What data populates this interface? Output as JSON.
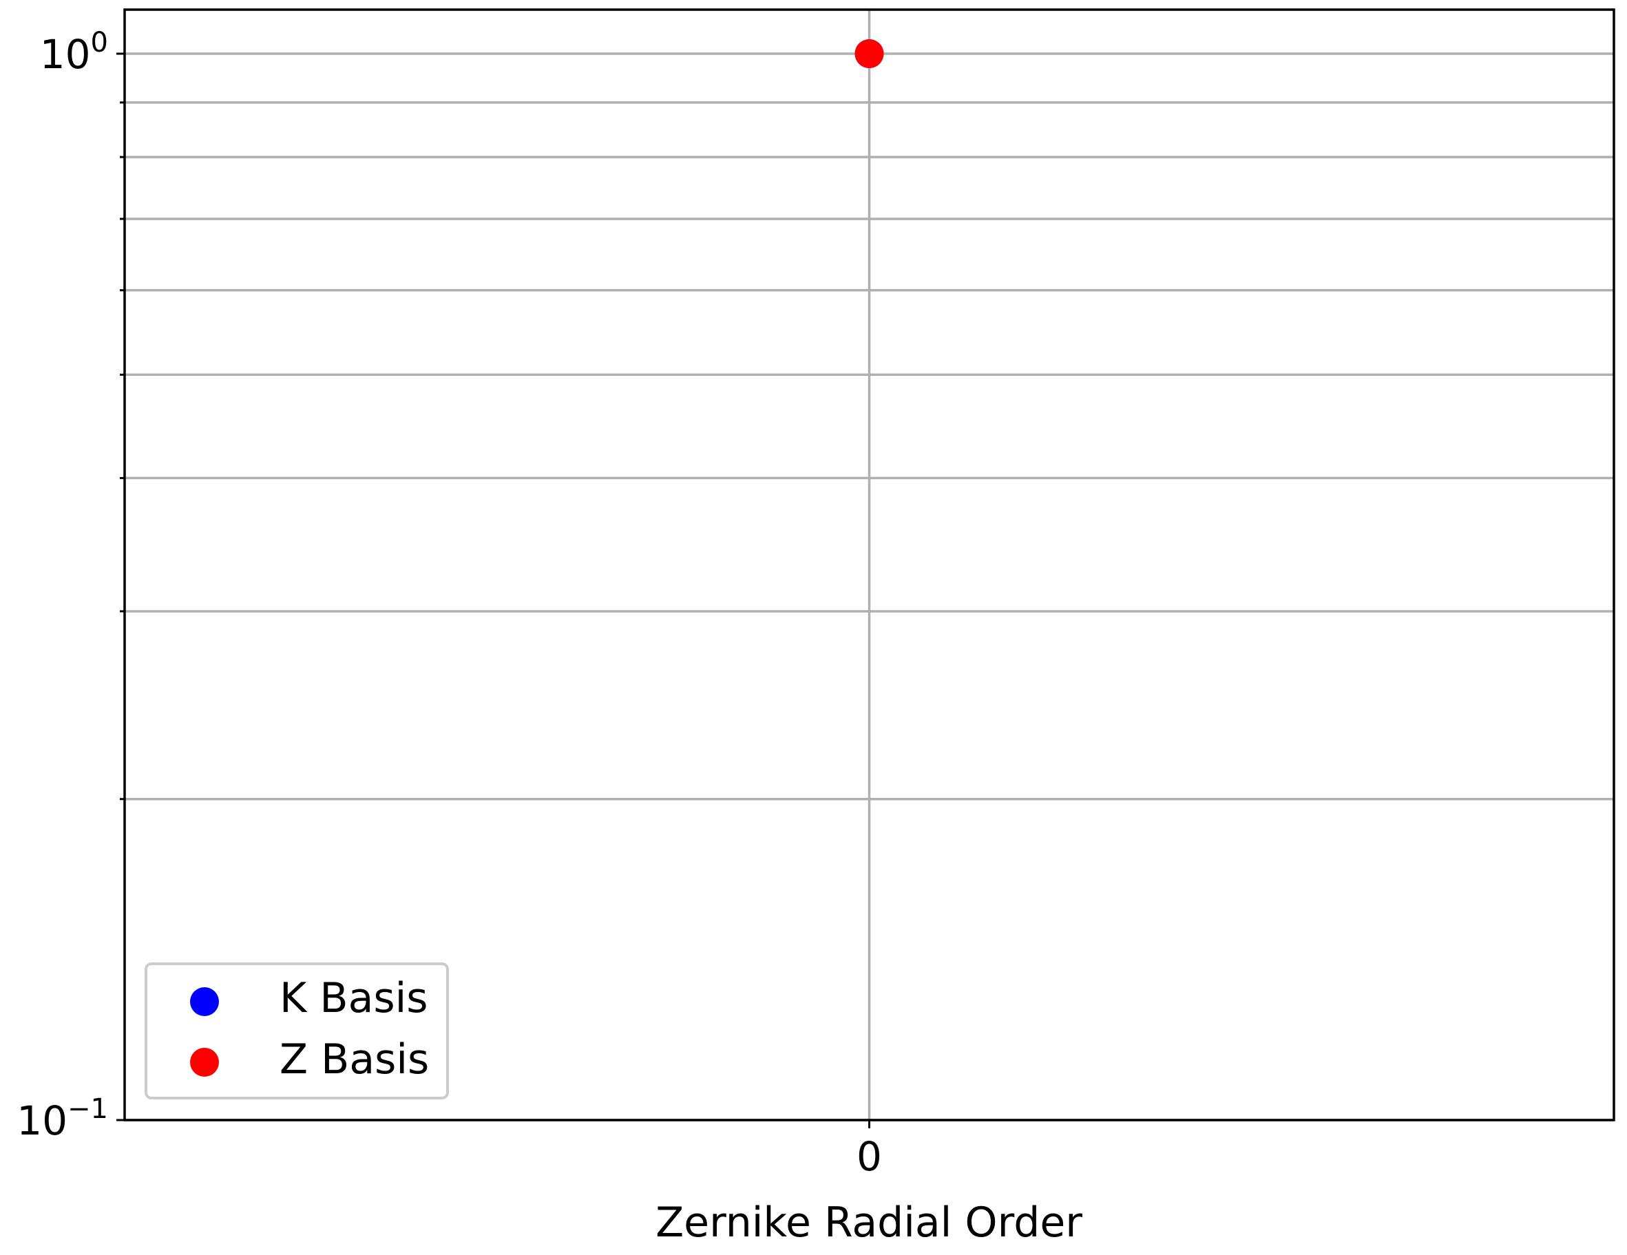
{
  "chart_data": {
    "type": "scatter",
    "title": "",
    "xlabel": "Zernike Radial Order",
    "ylabel": "",
    "xlim": [
      -1,
      1
    ],
    "ylim": [
      0.1,
      1.0
    ],
    "yscale": "log",
    "grid": true,
    "x_ticks": [
      {
        "value": 0,
        "label": "0"
      }
    ],
    "y_major_ticks": [
      {
        "value": 1.0,
        "base": "10",
        "exp": "0"
      },
      {
        "value": 0.1,
        "base": "10",
        "exp": "−1"
      }
    ],
    "y_minor_ticks": [
      0.2,
      0.3,
      0.4,
      0.5,
      0.6,
      0.7,
      0.8,
      0.9
    ],
    "legend_position": "lower-left",
    "series": [
      {
        "name": "K Basis",
        "color": "#0000ff",
        "x": [
          0
        ],
        "y": [
          1.0
        ]
      },
      {
        "name": "Z Basis",
        "color": "#ff0000",
        "x": [
          0
        ],
        "y": [
          1.0
        ]
      }
    ]
  }
}
